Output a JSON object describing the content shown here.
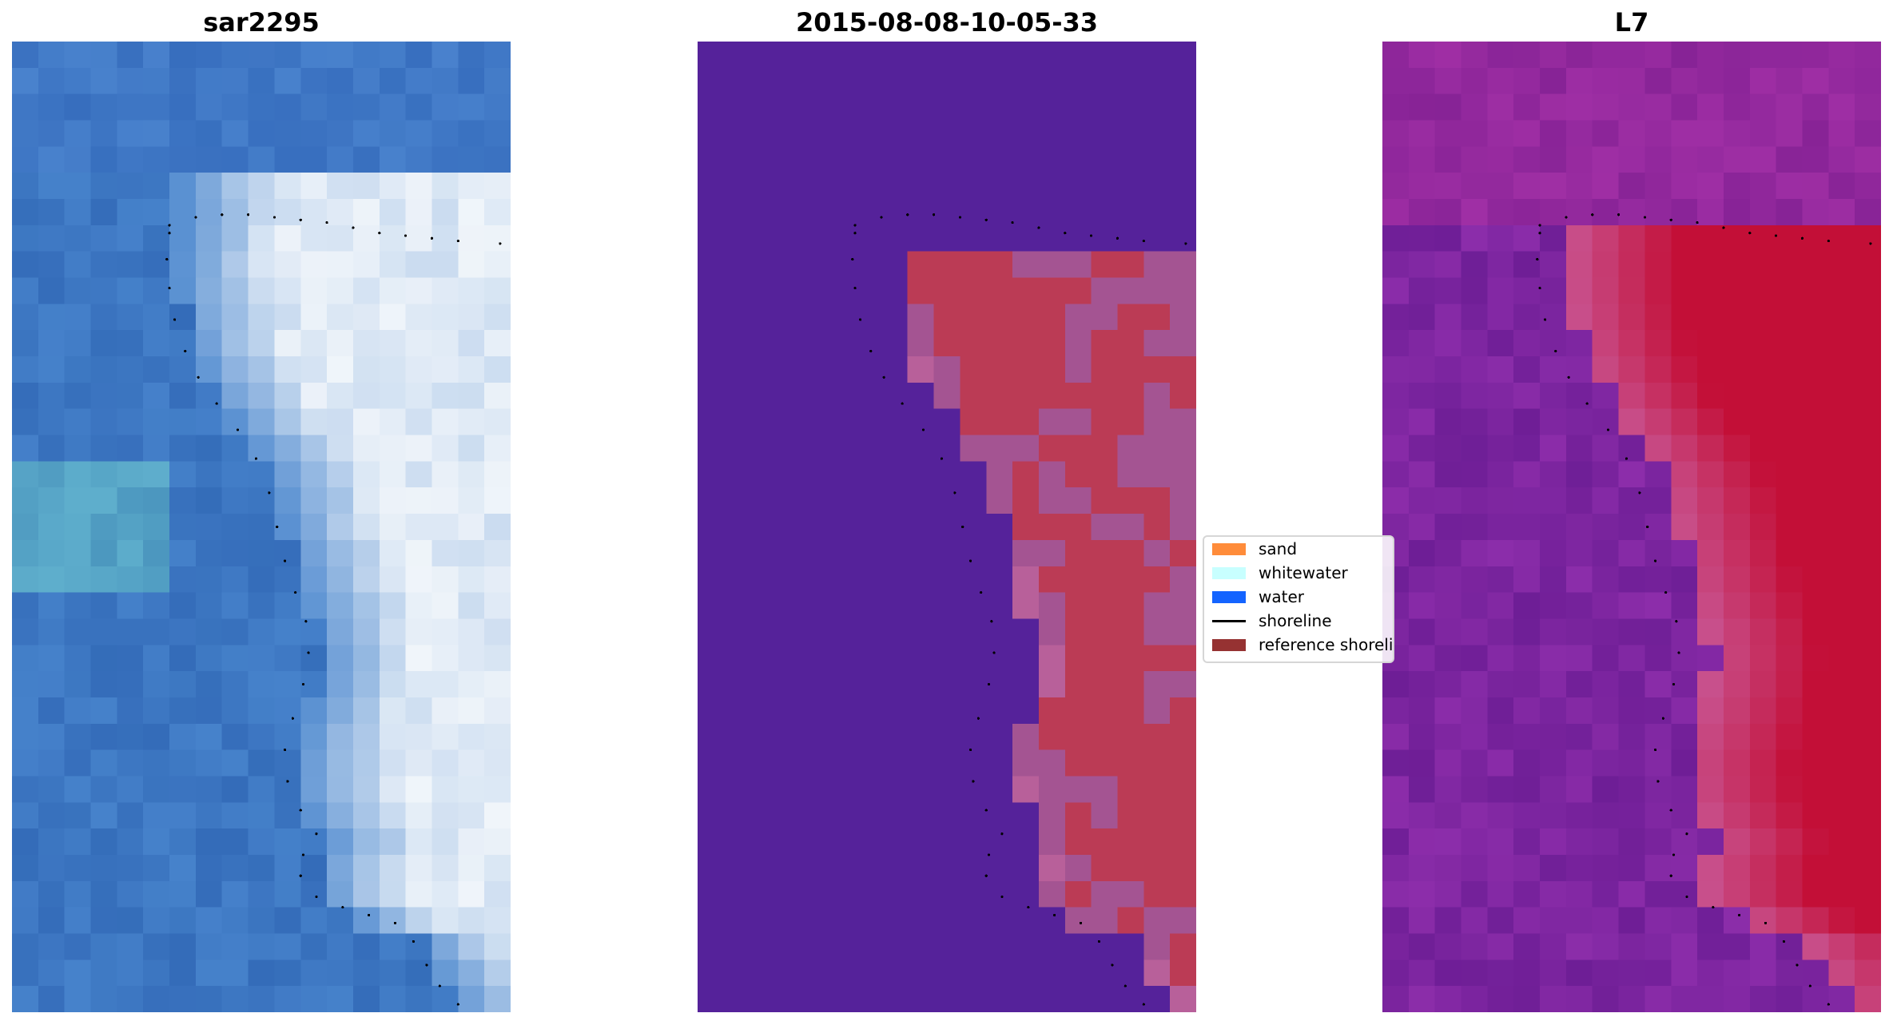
{
  "panels": [
    {
      "title": "sar2295",
      "kind": "rgb-image"
    },
    {
      "title": "2015-08-08-10-05-33",
      "kind": "classified-image"
    },
    {
      "title": "L7",
      "kind": "mndwi-image"
    }
  ],
  "legend": {
    "items": [
      {
        "label": "sand",
        "color": "#ff8c3a",
        "type": "patch"
      },
      {
        "label": "whitewater",
        "color": "#c8ffff",
        "type": "patch"
      },
      {
        "label": "water",
        "color": "#1464ff",
        "type": "patch"
      },
      {
        "label": "shoreline",
        "color": "#000000",
        "type": "line"
      },
      {
        "label": "reference shoreline",
        "color": "#963232",
        "type": "patch"
      }
    ]
  }
}
